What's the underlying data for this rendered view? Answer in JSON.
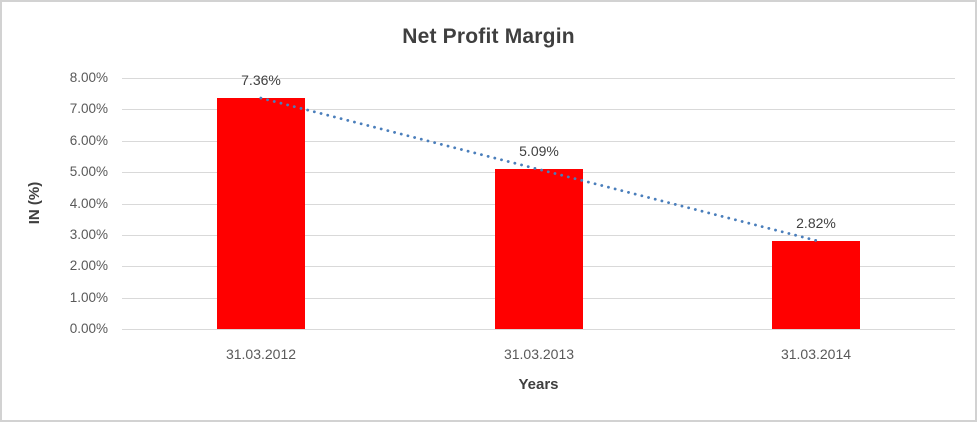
{
  "chart_data": {
    "type": "bar",
    "title": "Net Profit Margin",
    "xlabel": "Years",
    "ylabel": "IN (%)",
    "categories": [
      "31.03.2012",
      "31.03.2013",
      "31.03.2014"
    ],
    "values": [
      7.36,
      5.09,
      2.82
    ],
    "data_labels": [
      "7.36%",
      "5.09%",
      "2.82%"
    ],
    "ylim": [
      0,
      8
    ],
    "ytick_values": [
      0,
      1,
      2,
      3,
      4,
      5,
      6,
      7,
      8
    ],
    "ytick_labels": [
      "0.00%",
      "1.00%",
      "2.00%",
      "3.00%",
      "4.00%",
      "5.00%",
      "6.00%",
      "7.00%",
      "8.00%"
    ],
    "grid": true,
    "legend": "none",
    "trendline": {
      "type": "linear",
      "style": "dotted",
      "from_value": 7.36,
      "to_value": 2.82
    },
    "colors": {
      "bar": "#ff0000",
      "trendline": "#4a7ebb",
      "gridline": "#d9d9d9",
      "title_text": "#3f3f3f",
      "tick_text": "#595959",
      "data_label_text": "#404040",
      "frame_border": "#d2d2d2"
    }
  }
}
